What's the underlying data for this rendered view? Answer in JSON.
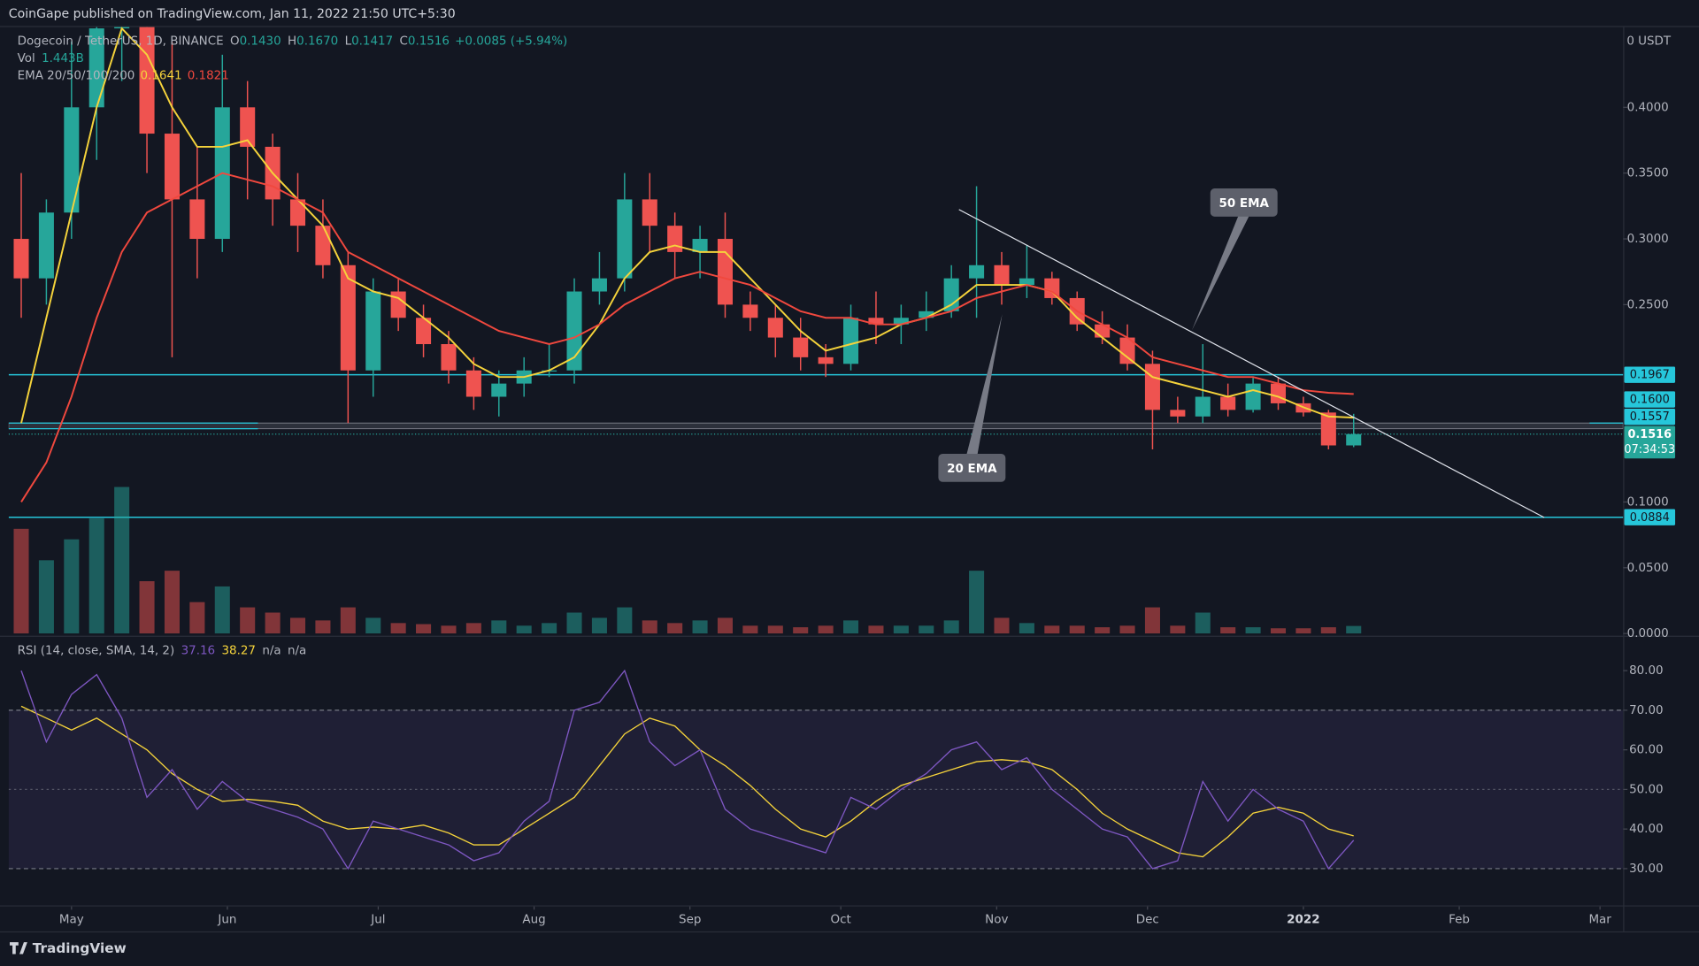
{
  "header": {
    "publisher_line": "CoinGape published on TradingView.com, Jan 11, 2022 21:50 UTC+5:30"
  },
  "footer": {
    "brand": "TradingView"
  },
  "chart_data": [
    {
      "type": "candlestick",
      "symbol": "Dogecoin / TetherUS, 1D, BINANCE",
      "ohlc_legend": [
        {
          "label": "O",
          "value": "0.1430"
        },
        {
          "label": "H",
          "value": "0.1670"
        },
        {
          "label": "L",
          "value": "0.1417"
        },
        {
          "label": "C",
          "value": "0.1516"
        }
      ],
      "change": "+0.0085 (+5.94%)",
      "unit_label": "0 USDT",
      "up_color": "#26a69a",
      "down_color": "#ef5350",
      "x": [
        -10,
        -5,
        0,
        5,
        10,
        15,
        20,
        25,
        30,
        35,
        40,
        45,
        50,
        55,
        60,
        65,
        70,
        75,
        80,
        85,
        90,
        95,
        100,
        105,
        110,
        115,
        120,
        125,
        130,
        135,
        140,
        145,
        150,
        155,
        160,
        165,
        170,
        175,
        180,
        185,
        190,
        195,
        200,
        205,
        210,
        215,
        220,
        225,
        230,
        235,
        240,
        245,
        250,
        255
      ],
      "open": [
        0.3,
        0.27,
        0.32,
        0.4,
        0.46,
        0.48,
        0.38,
        0.33,
        0.3,
        0.4,
        0.37,
        0.33,
        0.31,
        0.28,
        0.2,
        0.26,
        0.24,
        0.22,
        0.2,
        0.18,
        0.19,
        0.2,
        0.2,
        0.26,
        0.27,
        0.33,
        0.31,
        0.29,
        0.3,
        0.25,
        0.24,
        0.225,
        0.21,
        0.205,
        0.24,
        0.235,
        0.24,
        0.245,
        0.27,
        0.28,
        0.265,
        0.27,
        0.255,
        0.235,
        0.225,
        0.205,
        0.17,
        0.165,
        0.18,
        0.17,
        0.19,
        0.175,
        0.168,
        0.143
      ],
      "high": [
        0.35,
        0.33,
        0.45,
        0.69,
        0.6,
        0.52,
        0.45,
        0.37,
        0.44,
        0.42,
        0.38,
        0.35,
        0.33,
        0.29,
        0.27,
        0.27,
        0.25,
        0.23,
        0.21,
        0.2,
        0.21,
        0.22,
        0.27,
        0.29,
        0.35,
        0.35,
        0.32,
        0.31,
        0.32,
        0.26,
        0.25,
        0.24,
        0.22,
        0.25,
        0.26,
        0.25,
        0.26,
        0.28,
        0.34,
        0.29,
        0.295,
        0.275,
        0.26,
        0.245,
        0.235,
        0.215,
        0.18,
        0.22,
        0.19,
        0.195,
        0.195,
        0.18,
        0.17,
        0.167
      ],
      "low": [
        0.24,
        0.25,
        0.3,
        0.36,
        0.42,
        0.35,
        0.21,
        0.27,
        0.29,
        0.33,
        0.31,
        0.29,
        0.27,
        0.16,
        0.18,
        0.23,
        0.21,
        0.19,
        0.17,
        0.165,
        0.18,
        0.195,
        0.19,
        0.25,
        0.26,
        0.29,
        0.27,
        0.27,
        0.24,
        0.23,
        0.21,
        0.2,
        0.195,
        0.2,
        0.22,
        0.22,
        0.23,
        0.24,
        0.24,
        0.25,
        0.255,
        0.25,
        0.23,
        0.22,
        0.2,
        0.14,
        0.16,
        0.16,
        0.165,
        0.168,
        0.17,
        0.165,
        0.14,
        0.1417
      ],
      "close": [
        0.27,
        0.32,
        0.4,
        0.46,
        0.48,
        0.38,
        0.33,
        0.3,
        0.4,
        0.37,
        0.33,
        0.31,
        0.28,
        0.2,
        0.26,
        0.24,
        0.22,
        0.2,
        0.18,
        0.19,
        0.2,
        0.2,
        0.26,
        0.27,
        0.33,
        0.31,
        0.29,
        0.3,
        0.25,
        0.24,
        0.225,
        0.21,
        0.205,
        0.24,
        0.235,
        0.24,
        0.245,
        0.27,
        0.28,
        0.265,
        0.27,
        0.255,
        0.235,
        0.225,
        0.205,
        0.17,
        0.165,
        0.18,
        0.17,
        0.19,
        0.175,
        0.168,
        0.143,
        0.1516
      ],
      "volume": {
        "name": "Vol",
        "value_label": "1.443B",
        "ylim": [
          0,
          30
        ],
        "values": [
          20,
          14,
          18,
          22,
          28,
          10,
          12,
          6,
          9,
          5,
          4,
          3,
          2.5,
          5,
          3,
          2,
          1.8,
          1.5,
          2,
          2.5,
          1.5,
          2,
          4,
          3,
          5,
          2.5,
          2,
          2.5,
          3,
          1.5,
          1.5,
          1.2,
          1.5,
          2.5,
          1.5,
          1.5,
          1.5,
          2.5,
          12,
          3,
          2,
          1.5,
          1.5,
          1.2,
          1.5,
          5,
          1.5,
          4,
          1.2,
          1.2,
          1,
          1,
          1.2,
          1.443
        ]
      },
      "ema": {
        "label": "EMA 20/50/100/200",
        "series": [
          {
            "color": "#f5d33b",
            "value_label": "0.1641",
            "values": [
              0.16,
              0.24,
              0.32,
              0.4,
              0.46,
              0.44,
              0.4,
              0.37,
              0.37,
              0.375,
              0.35,
              0.33,
              0.31,
              0.27,
              0.26,
              0.255,
              0.24,
              0.225,
              0.205,
              0.195,
              0.195,
              0.2,
              0.21,
              0.235,
              0.27,
              0.29,
              0.295,
              0.29,
              0.29,
              0.27,
              0.25,
              0.23,
              0.215,
              0.22,
              0.225,
              0.235,
              0.24,
              0.25,
              0.265,
              0.265,
              0.265,
              0.26,
              0.24,
              0.225,
              0.21,
              0.195,
              0.19,
              0.185,
              0.18,
              0.185,
              0.18,
              0.172,
              0.165,
              0.1641
            ]
          },
          {
            "color": "#f0483e",
            "value_label": "0.1821",
            "values": [
              0.1,
              0.13,
              0.18,
              0.24,
              0.29,
              0.32,
              0.33,
              0.34,
              0.35,
              0.345,
              0.34,
              0.33,
              0.32,
              0.29,
              0.28,
              0.27,
              0.26,
              0.25,
              0.24,
              0.23,
              0.225,
              0.22,
              0.225,
              0.235,
              0.25,
              0.26,
              0.27,
              0.275,
              0.27,
              0.265,
              0.255,
              0.245,
              0.24,
              0.24,
              0.235,
              0.235,
              0.24,
              0.245,
              0.255,
              0.26,
              0.265,
              0.26,
              0.245,
              0.235,
              0.225,
              0.21,
              0.205,
              0.2,
              0.195,
              0.195,
              0.19,
              0.185,
              0.183,
              0.1821
            ]
          }
        ]
      },
      "xlim": [
        -12.5,
        308.6
      ],
      "xticks": [
        {
          "value": 0,
          "label": "May"
        },
        {
          "value": 31,
          "label": "Jun"
        },
        {
          "value": 61,
          "label": "Jul"
        },
        {
          "value": 92,
          "label": "Aug"
        },
        {
          "value": 123,
          "label": "Sep"
        },
        {
          "value": 153,
          "label": "Oct"
        },
        {
          "value": 184,
          "label": "Nov"
        },
        {
          "value": 214,
          "label": "Dec"
        },
        {
          "value": 245,
          "label": "2022"
        },
        {
          "value": 276,
          "label": "Feb"
        },
        {
          "value": 304,
          "label": "Mar"
        }
      ],
      "ylim": [
        0,
        0.461
      ],
      "yticks": [
        {
          "value": 0,
          "label": "0.0000"
        },
        {
          "value": 0.05,
          "label": "0.0500"
        },
        {
          "value": 0.1,
          "label": "0.1000"
        },
        {
          "value": 0.25,
          "label": "0.2500"
        },
        {
          "value": 0.3,
          "label": "0.3000"
        },
        {
          "value": 0.35,
          "label": "0.3500"
        },
        {
          "value": 0.4,
          "label": "0.4000"
        }
      ],
      "levels": [
        {
          "value": 0.1967,
          "label": "0.1967",
          "color": "#26c6da"
        },
        {
          "value": 0.0884,
          "label": "0.0884",
          "color": "#26c6da"
        }
      ],
      "zone": {
        "color": "#26c6da",
        "top": {
          "value": 0.16,
          "label": "0.1600"
        },
        "bottom": {
          "value": 0.1557,
          "label": "0.1557"
        }
      },
      "last_price": {
        "value": 0.1516,
        "label": "0.1516",
        "countdown": "07:34:53",
        "color": "#26a69a"
      },
      "trendline": {
        "x": [
          176.5,
          292.9
        ],
        "y": [
          0.3223,
          0.0882
        ]
      },
      "annotations": [
        "50 EMA",
        "20 EMA"
      ]
    },
    {
      "type": "line",
      "title": "RSI (14, close, SMA, 14, 2)",
      "extra_labels": [
        "n/a",
        "n/a"
      ],
      "x": [
        -10,
        -5,
        0,
        5,
        10,
        15,
        20,
        25,
        30,
        35,
        40,
        45,
        50,
        55,
        60,
        65,
        70,
        75,
        80,
        85,
        90,
        95,
        100,
        105,
        110,
        115,
        120,
        125,
        130,
        135,
        140,
        145,
        150,
        155,
        160,
        165,
        170,
        175,
        180,
        185,
        190,
        195,
        200,
        205,
        210,
        215,
        220,
        225,
        230,
        235,
        240,
        245,
        250,
        255
      ],
      "series": [
        {
          "color": "#7e57c2",
          "value_label": "37.16",
          "values": [
            80,
            62,
            74,
            79,
            68,
            48,
            55,
            45,
            52,
            47,
            45,
            43,
            40,
            30,
            42,
            40,
            38,
            36,
            32,
            34,
            42,
            47,
            70,
            72,
            80,
            62,
            56,
            60,
            45,
            40,
            38,
            36,
            34,
            48,
            45,
            50,
            54,
            60,
            62,
            55,
            58,
            50,
            45,
            40,
            38,
            30,
            32,
            52,
            42,
            50,
            45,
            42,
            30,
            37.16
          ]
        },
        {
          "color": "#f5d33b",
          "value_label": "38.27",
          "values": [
            71,
            68,
            65,
            68,
            64,
            60,
            54,
            50,
            47,
            47.5,
            47,
            46,
            42,
            40,
            40.5,
            40,
            41,
            39,
            36,
            36,
            40,
            44,
            48,
            56,
            64,
            68,
            66,
            60,
            56,
            51,
            45,
            40,
            38,
            42,
            47,
            51,
            53,
            55,
            57,
            57.5,
            57,
            55,
            50,
            44,
            40,
            37,
            34,
            33,
            38,
            44,
            45.5,
            44,
            40,
            38.27
          ]
        }
      ],
      "xlim": [
        -12.5,
        308.6
      ],
      "ylim": [
        21,
        88
      ],
      "yticks": [
        {
          "value": 30,
          "label": "30.00"
        },
        {
          "value": 40,
          "label": "40.00"
        },
        {
          "value": 50,
          "label": "50.00"
        },
        {
          "value": 60,
          "label": "60.00"
        },
        {
          "value": 70,
          "label": "70.00"
        },
        {
          "value": 80,
          "label": "80.00"
        }
      ],
      "band": [
        30,
        70
      ],
      "midline": 50
    }
  ]
}
